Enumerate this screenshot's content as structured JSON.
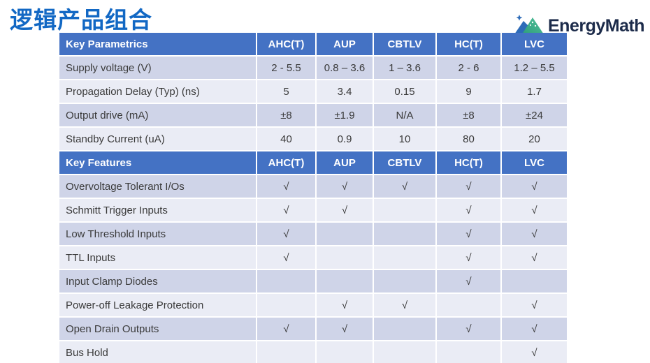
{
  "page": {
    "title": "逻辑产品组合",
    "logo_text": "EnergyMath",
    "logo_icon": "energymath-mountain-icon"
  },
  "table": {
    "columns": [
      "AHC(T)",
      "AUP",
      "CBTLV",
      "HC(T)",
      "LVC"
    ],
    "check_mark": "√",
    "sections": [
      {
        "header": "Key Parametrics",
        "rows": [
          {
            "label": "Supply voltage (V)",
            "values": [
              "2 - 5.5",
              "0.8 – 3.6",
              "1 – 3.6",
              "2 - 6",
              "1.2 – 5.5"
            ]
          },
          {
            "label": "Propagation Delay (Typ) (ns)",
            "values": [
              "5",
              "3.4",
              "0.15",
              "9",
              "1.7"
            ]
          },
          {
            "label": "Output drive (mA)",
            "values": [
              "±8",
              "±1.9",
              "N/A",
              "±8",
              "±24"
            ]
          },
          {
            "label": "Standby Current (uA)",
            "values": [
              "40",
              "0.9",
              "10",
              "80",
              "20"
            ]
          }
        ]
      },
      {
        "header": "Key Features",
        "rows": [
          {
            "label": "Overvoltage Tolerant I/Os",
            "values": [
              "√",
              "√",
              "√",
              "√",
              "√"
            ]
          },
          {
            "label": "Schmitt Trigger Inputs",
            "values": [
              "√",
              "√",
              "",
              "√",
              "√"
            ]
          },
          {
            "label": "Low Threshold Inputs",
            "values": [
              "√",
              "",
              "",
              "√",
              "√"
            ]
          },
          {
            "label": "TTL Inputs",
            "values": [
              "√",
              "",
              "",
              "√",
              "√"
            ]
          },
          {
            "label": "Input Clamp Diodes",
            "values": [
              "",
              "",
              "",
              "√",
              ""
            ]
          },
          {
            "label": "Power-off Leakage Protection",
            "values": [
              "",
              "√",
              "√",
              "",
              "√"
            ]
          },
          {
            "label": "Open Drain Outputs",
            "values": [
              "√",
              "√",
              "",
              "√",
              "√"
            ]
          },
          {
            "label": "Bus Hold",
            "values": [
              "",
              "",
              "",
              "",
              "√"
            ]
          }
        ]
      }
    ]
  },
  "colors": {
    "header_bg": "#4472C4",
    "band_dark": "#CFD4E8",
    "band_light": "#EAECF5",
    "title_blue": "#1268C4",
    "logo_navy": "#1C2B4A",
    "logo_blue": "#2D6BB8",
    "logo_green_light": "#52C19A",
    "logo_green_dark": "#2E9E7B"
  }
}
